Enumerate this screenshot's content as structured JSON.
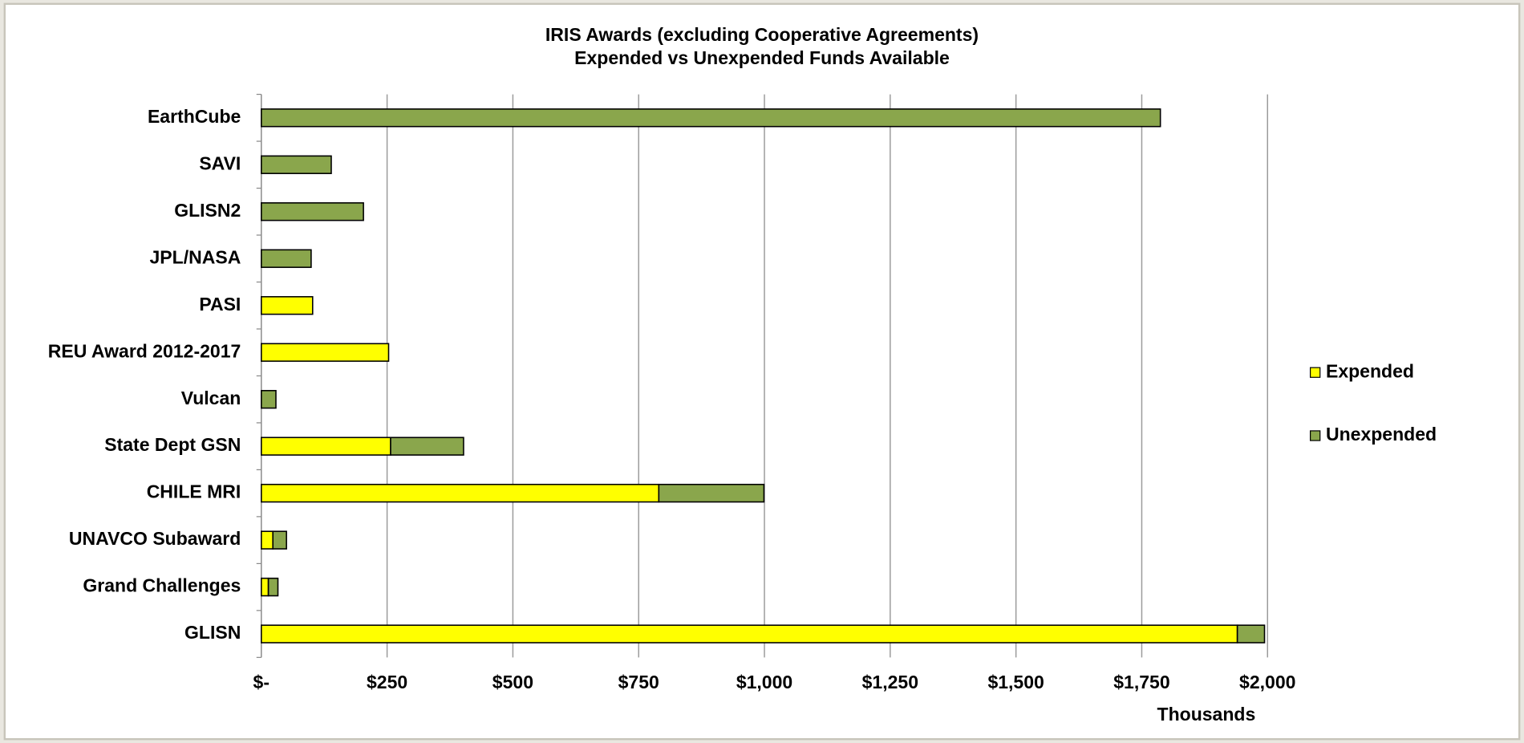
{
  "chart_data": {
    "type": "hbar-stacked",
    "title": "IRIS Awards (excluding Cooperative Agreements)",
    "subtitle": "Expended vs Unexpended Funds Available",
    "x_label": "Thousands",
    "categories": [
      "EarthCube",
      "SAVI",
      "GLISN2",
      "JPL/NASA",
      "PASI",
      "REU Award 2012-2017",
      "Vulcan",
      "State Dept GSN",
      "CHILE MRI",
      "UNAVCO Subaward",
      "Grand Challenges",
      "GLISN"
    ],
    "series": [
      {
        "name": "Expended",
        "color": "#ffff00",
        "values": [
          0,
          0,
          0,
          0,
          102,
          253,
          0,
          257,
          790,
          23,
          14,
          1940
        ]
      },
      {
        "name": "Unexpended",
        "color": "#8aa64c",
        "values": [
          1787,
          139,
          203,
          99,
          0,
          0,
          29,
          145,
          209,
          27,
          19,
          54
        ]
      }
    ],
    "xlim": [
      0,
      2000
    ],
    "xticks": [
      {
        "value": 0,
        "label": "$-"
      },
      {
        "value": 250,
        "label": "$250"
      },
      {
        "value": 500,
        "label": "$500"
      },
      {
        "value": 750,
        "label": "$750"
      },
      {
        "value": 1000,
        "label": "$1,000"
      },
      {
        "value": 1250,
        "label": "$1,250"
      },
      {
        "value": 1500,
        "label": "$1,500"
      },
      {
        "value": 1750,
        "label": "$1,750"
      },
      {
        "value": 2000,
        "label": "$2,000"
      }
    ],
    "grid": true,
    "legend": "right"
  }
}
